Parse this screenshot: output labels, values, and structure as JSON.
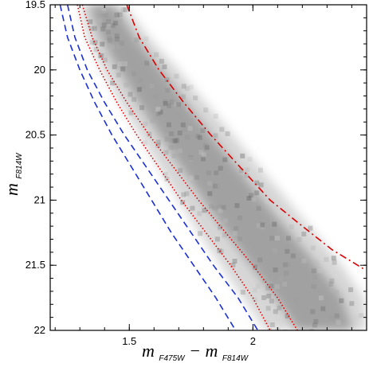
{
  "chart_data": {
    "type": "scatter",
    "title": "",
    "xlabel": {
      "main": "m",
      "sub1": "F475W",
      "dash": "−",
      "main2": "m",
      "sub2": "F814W"
    },
    "ylabel": {
      "main": "m",
      "sub": "F814W"
    },
    "xlim": [
      1.18,
      2.46
    ],
    "ylim": [
      22.0,
      19.5
    ],
    "y_inverted": true,
    "grid": false,
    "legend": "none",
    "x_ticks": [
      {
        "value": 1.5,
        "label": "1.5"
      },
      {
        "value": 2.0,
        "label": "2"
      }
    ],
    "y_ticks": [
      {
        "value": 19.5,
        "label": "19.5"
      },
      {
        "value": 20.0,
        "label": "20"
      },
      {
        "value": 20.5,
        "label": "20.5"
      },
      {
        "value": 21.0,
        "label": "21"
      },
      {
        "value": 21.5,
        "label": "21.5"
      },
      {
        "value": 22.0,
        "label": "22"
      }
    ],
    "density": {
      "description_free": true,
      "ridge_x": [
        1.38,
        1.45,
        1.54,
        1.63,
        1.72,
        1.82,
        1.92,
        2.03,
        2.14,
        2.25,
        2.34
      ],
      "ridge_y": [
        19.5,
        19.75,
        20.0,
        20.25,
        20.5,
        20.75,
        21.0,
        21.25,
        21.5,
        21.75,
        22.0
      ],
      "left_x": [
        1.3,
        1.33,
        1.39,
        1.46,
        1.54,
        1.62,
        1.7,
        1.78,
        1.87,
        1.96,
        2.05
      ],
      "right_x": [
        1.48,
        1.58,
        1.7,
        1.81,
        1.92,
        2.03,
        2.14,
        2.25,
        2.36,
        2.45,
        2.46
      ]
    },
    "series": [
      {
        "style": "dashdot",
        "color": "#dd0000",
        "x": [
          1.49,
          1.54,
          1.62,
          1.72,
          1.83,
          1.95,
          2.07,
          2.2,
          2.32,
          2.45
        ],
        "y": [
          19.5,
          19.75,
          20.0,
          20.25,
          20.5,
          20.75,
          21.0,
          21.2,
          21.38,
          21.53
        ]
      },
      {
        "style": "dotted",
        "color": "#dd0000",
        "x": [
          1.31,
          1.35,
          1.41,
          1.49,
          1.58,
          1.68,
          1.78,
          1.89,
          2.0,
          2.1,
          2.18
        ],
        "y": [
          19.5,
          19.75,
          20.0,
          20.25,
          20.5,
          20.75,
          21.0,
          21.25,
          21.5,
          21.75,
          22.0
        ]
      },
      {
        "style": "dotted",
        "color": "#dd0000",
        "x": [
          1.29,
          1.32,
          1.38,
          1.45,
          1.53,
          1.62,
          1.71,
          1.81,
          1.91,
          2.0,
          2.07
        ],
        "y": [
          19.5,
          19.75,
          20.0,
          20.25,
          20.5,
          20.75,
          21.0,
          21.25,
          21.5,
          21.75,
          22.0
        ]
      },
      {
        "style": "dashed",
        "color": "#1a2fd6",
        "x": [
          1.25,
          1.28,
          1.33,
          1.4,
          1.48,
          1.57,
          1.66,
          1.75,
          1.84,
          1.94,
          2.02
        ],
        "y": [
          19.5,
          19.75,
          20.0,
          20.25,
          20.5,
          20.75,
          21.0,
          21.25,
          21.5,
          21.75,
          22.0
        ]
      },
      {
        "style": "dashed",
        "color": "#1a2fd6",
        "x": [
          1.22,
          1.25,
          1.3,
          1.36,
          1.43,
          1.51,
          1.59,
          1.67,
          1.76,
          1.85,
          1.93
        ],
        "y": [
          19.5,
          19.75,
          20.0,
          20.25,
          20.5,
          20.75,
          21.0,
          21.25,
          21.5,
          21.75,
          22.0
        ]
      }
    ]
  }
}
